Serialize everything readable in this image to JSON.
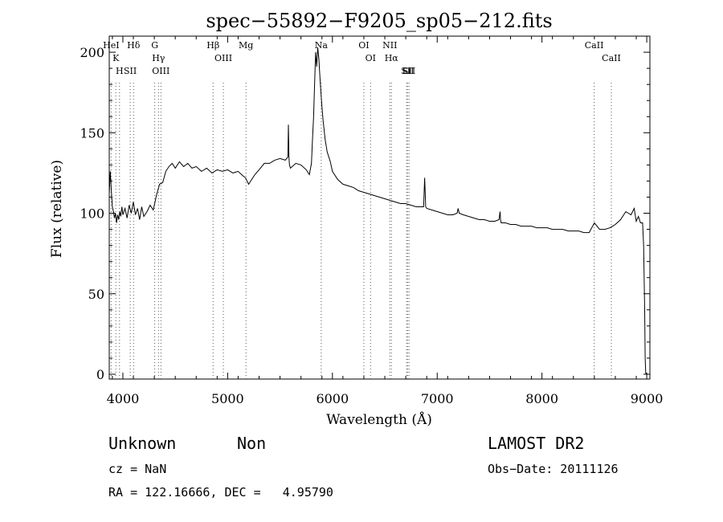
{
  "chart_data": {
    "type": "line",
    "title": "spec−55892−F9205_sp05−212.fits",
    "xlabel": "Wavelength (Å)",
    "ylabel": "Flux (relative)",
    "xlim": [
      3870,
      9030
    ],
    "ylim": [
      -3,
      210
    ],
    "xticks": [
      4000,
      5000,
      6000,
      7000,
      8000,
      9000
    ],
    "yticks": [
      0,
      50,
      100,
      150,
      200
    ],
    "grid": false,
    "series": [
      {
        "x": [
          3870,
          3880,
          3890,
          3900,
          3910,
          3920,
          3930,
          3940,
          3950,
          3960,
          3970,
          3980,
          3990,
          4000,
          4020,
          4040,
          4060,
          4080,
          4100,
          4120,
          4140,
          4160,
          4180,
          4200,
          4230,
          4260,
          4290,
          4320,
          4350,
          4380,
          4410,
          4440,
          4470,
          4500,
          4540,
          4580,
          4620,
          4660,
          4700,
          4750,
          4800,
          4850,
          4900,
          4950,
          5000,
          5050,
          5100,
          5150,
          5170,
          5200,
          5230,
          5260,
          5300,
          5350,
          5400,
          5450,
          5500,
          5550,
          5575,
          5580,
          5585,
          5590,
          5600,
          5650,
          5700,
          5750,
          5780,
          5800,
          5810,
          5820,
          5830,
          5840,
          5850,
          5860,
          5870,
          5880,
          5890,
          5900,
          5910,
          5930,
          5950,
          5980,
          6000,
          6050,
          6100,
          6150,
          6200,
          6250,
          6300,
          6350,
          6400,
          6450,
          6500,
          6550,
          6600,
          6650,
          6700,
          6750,
          6800,
          6850,
          6870,
          6875,
          6880,
          6885,
          6890,
          6900,
          6950,
          7000,
          7050,
          7100,
          7150,
          7190,
          7200,
          7210,
          7250,
          7300,
          7350,
          7400,
          7450,
          7500,
          7550,
          7590,
          7600,
          7605,
          7610,
          7650,
          7700,
          7750,
          7800,
          7850,
          7900,
          7950,
          8000,
          8050,
          8100,
          8150,
          8200,
          8250,
          8300,
          8350,
          8400,
          8450,
          8500,
          8550,
          8600,
          8650,
          8700,
          8750,
          8800,
          8850,
          8880,
          8900,
          8920,
          8940,
          8960,
          8970,
          8980,
          8985,
          8990,
          8995
        ],
        "values": [
          112,
          126,
          114,
          104,
          101,
          97,
          100,
          94,
          99,
          96,
          101,
          98,
          104,
          99,
          103,
          97,
          105,
          100,
          107,
          99,
          103,
          96,
          104,
          98,
          101,
          105,
          102,
          111,
          118,
          119,
          126,
          129,
          131,
          128,
          132,
          129,
          131,
          128,
          129,
          126,
          128,
          125,
          127,
          126,
          127,
          125,
          126,
          123,
          122,
          118,
          121,
          124,
          127,
          131,
          131,
          133,
          134,
          133,
          135,
          155,
          135,
          130,
          128,
          131,
          130,
          127,
          124,
          131,
          146,
          159,
          180,
          200,
          191,
          203,
          196,
          185,
          175,
          166,
          158,
          146,
          138,
          132,
          126,
          121,
          118,
          117,
          116,
          114,
          113,
          112,
          111,
          110,
          109,
          108,
          107,
          106,
          106,
          105,
          104,
          104,
          104,
          112,
          122,
          114,
          104,
          103,
          102,
          101,
          100,
          99,
          99,
          100,
          103,
          100,
          99,
          98,
          97,
          96,
          96,
          95,
          95,
          96,
          101,
          96,
          94,
          94,
          93,
          93,
          92,
          92,
          92,
          91,
          91,
          91,
          90,
          90,
          90,
          89,
          89,
          89,
          88,
          88,
          94,
          90,
          90,
          91,
          93,
          96,
          101,
          99,
          103,
          95,
          98,
          94,
          94,
          80,
          40,
          10,
          1,
          0
        ]
      }
    ],
    "lines": [
      {
        "wavelength": 3888,
        "labels": [
          "HeI"
        ]
      },
      {
        "wavelength": 3933,
        "labels": [
          "K"
        ]
      },
      {
        "wavelength": 3968,
        "labels": [
          "H"
        ]
      },
      {
        "wavelength": 4070,
        "labels": [
          "SII"
        ]
      },
      {
        "wavelength": 4102,
        "labels": [
          "Hδ"
        ]
      },
      {
        "wavelength": 4304,
        "labels": [
          "G"
        ]
      },
      {
        "wavelength": 4340,
        "labels": [
          "Hγ"
        ]
      },
      {
        "wavelength": 4363,
        "labels": [
          "OIII"
        ]
      },
      {
        "wavelength": 4861,
        "labels": [
          "Hβ"
        ]
      },
      {
        "wavelength": 4959,
        "labels": [
          "OIII"
        ]
      },
      {
        "wavelength": 5175,
        "labels": [
          "Mg"
        ]
      },
      {
        "wavelength": 5893,
        "labels": [
          "Na"
        ]
      },
      {
        "wavelength": 6300,
        "labels": [
          "OI"
        ]
      },
      {
        "wavelength": 6364,
        "labels": [
          "OI"
        ]
      },
      {
        "wavelength": 6548,
        "labels": [
          "NII"
        ]
      },
      {
        "wavelength": 6563,
        "labels": [
          "Hα"
        ]
      },
      {
        "wavelength": 6708,
        "labels": [
          "Li"
        ]
      },
      {
        "wavelength": 6717,
        "labels": [
          "SII"
        ]
      },
      {
        "wavelength": 6731,
        "labels": [
          "SII"
        ]
      },
      {
        "wavelength": 8498,
        "labels": [
          "CaII"
        ]
      },
      {
        "wavelength": 8662,
        "labels": [
          "CaII"
        ]
      }
    ]
  },
  "info": {
    "class": "Unknown",
    "subclass": "Non",
    "survey": "LAMOST DR2",
    "cz": "cz = NaN",
    "obs_date": "Obs−Date: 20111126",
    "radec": "RA = 122.16666, DEC =   4.95790"
  }
}
